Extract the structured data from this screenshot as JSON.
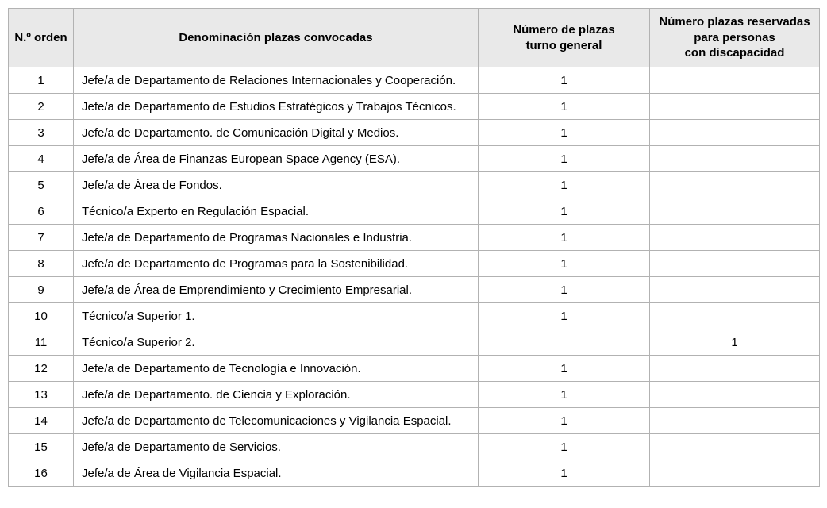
{
  "table": {
    "headers": [
      "N.º orden",
      "Denominación plazas convocadas",
      "Número de plazas\nturno general",
      "Número plazas reservadas\npara personas\ncon discapacidad"
    ],
    "rows": [
      {
        "orden": "1",
        "denominacion": "Jefe/a de Departamento de Relaciones Internacionales y Cooperación.",
        "turno_general": "1",
        "discapacidad": ""
      },
      {
        "orden": "2",
        "denominacion": "Jefe/a de Departamento de Estudios Estratégicos y Trabajos Técnicos.",
        "turno_general": "1",
        "discapacidad": ""
      },
      {
        "orden": "3",
        "denominacion": "Jefe/a de Departamento. de Comunicación Digital y Medios.",
        "turno_general": "1",
        "discapacidad": ""
      },
      {
        "orden": "4",
        "denominacion": "Jefe/a de Área de Finanzas European Space Agency (ESA).",
        "turno_general": "1",
        "discapacidad": ""
      },
      {
        "orden": "5",
        "denominacion": "Jefe/a de Área de Fondos.",
        "turno_general": "1",
        "discapacidad": ""
      },
      {
        "orden": "6",
        "denominacion": "Técnico/a Experto en Regulación Espacial.",
        "turno_general": "1",
        "discapacidad": ""
      },
      {
        "orden": "7",
        "denominacion": "Jefe/a de Departamento de Programas Nacionales e Industria.",
        "turno_general": "1",
        "discapacidad": ""
      },
      {
        "orden": "8",
        "denominacion": "Jefe/a de Departamento de Programas para la Sostenibilidad.",
        "turno_general": "1",
        "discapacidad": ""
      },
      {
        "orden": "9",
        "denominacion": "Jefe/a de Área de Emprendimiento y Crecimiento Empresarial.",
        "turno_general": "1",
        "discapacidad": ""
      },
      {
        "orden": "10",
        "denominacion": "Técnico/a Superior 1.",
        "turno_general": "1",
        "discapacidad": ""
      },
      {
        "orden": "11",
        "denominacion": "Técnico/a Superior 2.",
        "turno_general": "",
        "discapacidad": "1"
      },
      {
        "orden": "12",
        "denominacion": "Jefe/a de Departamento de Tecnología e Innovación.",
        "turno_general": "1",
        "discapacidad": ""
      },
      {
        "orden": "13",
        "denominacion": "Jefe/a de Departamento. de Ciencia y Exploración.",
        "turno_general": "1",
        "discapacidad": ""
      },
      {
        "orden": "14",
        "denominacion": "Jefe/a de Departamento de Telecomunicaciones y Vigilancia Espacial.",
        "turno_general": "1",
        "discapacidad": ""
      },
      {
        "orden": "15",
        "denominacion": "Jefe/a de Departamento de Servicios.",
        "turno_general": "1",
        "discapacidad": ""
      },
      {
        "orden": "16",
        "denominacion": "Jefe/a de Área de Vigilancia Espacial.",
        "turno_general": "1",
        "discapacidad": ""
      }
    ]
  },
  "colors": {
    "header_bg": "#e9e9e9",
    "border": "#b2b2b2",
    "text": "#000000",
    "page_bg": "#ffffff"
  }
}
